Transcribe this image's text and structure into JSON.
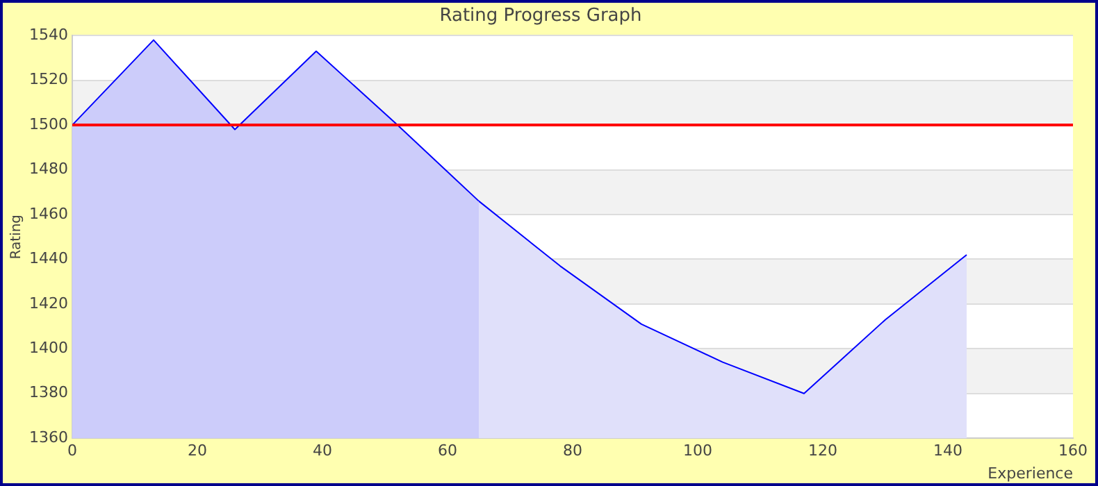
{
  "chart_data": {
    "type": "area",
    "title": "Rating Progress Graph",
    "xlabel": "Experience",
    "ylabel": "Rating",
    "series": [
      {
        "x": [
          0,
          13,
          26,
          39,
          52,
          65
        ],
        "values": [
          1500,
          1538,
          1498,
          1533,
          1500,
          1466
        ],
        "color": "#ccccfa"
      },
      {
        "x": [
          65,
          78,
          91,
          104,
          117,
          130,
          143
        ],
        "values": [
          1466,
          1437,
          1411,
          1394,
          1380,
          1413,
          1442
        ],
        "color": "#e0e0fa"
      }
    ],
    "xlim": [
      0,
      160
    ],
    "xticks": [
      0,
      20,
      40,
      60,
      80,
      100,
      120,
      140,
      160
    ],
    "ylim": [
      1360,
      1540
    ],
    "yticks": [
      1360,
      1380,
      1400,
      1420,
      1440,
      1460,
      1480,
      1500,
      1520,
      1540
    ],
    "ref_lines": [
      {
        "axis": "y",
        "value": 1500,
        "color": "#ff0000"
      }
    ],
    "grid": "y",
    "legend": false,
    "marker": "none"
  }
}
